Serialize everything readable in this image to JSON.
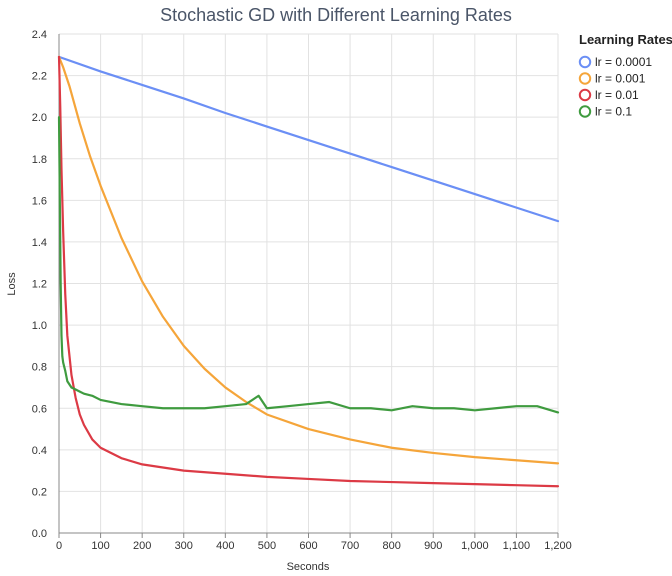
{
  "chart_data": {
    "type": "line",
    "title": "Stochastic GD with Different Learning Rates",
    "xlabel": "Seconds",
    "ylabel": "Loss",
    "xlim": [
      0,
      1200
    ],
    "ylim": [
      0,
      2.4
    ],
    "x_ticks": [
      0,
      100,
      200,
      300,
      400,
      500,
      600,
      700,
      800,
      900,
      1000,
      1100,
      1200
    ],
    "x_tick_labels": [
      "0",
      "100",
      "200",
      "300",
      "400",
      "500",
      "600",
      "700",
      "800",
      "900",
      "1,000",
      "1,100",
      "1,200"
    ],
    "y_ticks": [
      0,
      0.2,
      0.4,
      0.6,
      0.8,
      1.0,
      1.2,
      1.4,
      1.6,
      1.8,
      2.0,
      2.2,
      2.4
    ],
    "y_tick_labels": [
      "0.0",
      "0.2",
      "0.4",
      "0.6",
      "0.8",
      "1.0",
      "1.2",
      "1.4",
      "1.6",
      "1.8",
      "2.0",
      "2.2",
      "2.4"
    ],
    "grid": true,
    "legend_title": "Learning Rates",
    "legend_position": "top-right",
    "series": [
      {
        "name": "lr = 0.0001",
        "color": "#6b8ff5",
        "x": [
          0,
          100,
          200,
          300,
          400,
          500,
          600,
          700,
          800,
          900,
          1000,
          1100,
          1200
        ],
        "y": [
          2.29,
          2.22,
          2.155,
          2.09,
          2.02,
          1.955,
          1.89,
          1.825,
          1.76,
          1.695,
          1.63,
          1.565,
          1.5
        ]
      },
      {
        "name": "lr = 0.001",
        "color": "#f5a53a",
        "x": [
          0,
          10,
          25,
          50,
          75,
          100,
          150,
          200,
          250,
          300,
          350,
          400,
          450,
          500,
          600,
          700,
          800,
          900,
          1000,
          1100,
          1200
        ],
        "y": [
          2.29,
          2.24,
          2.15,
          1.97,
          1.81,
          1.67,
          1.42,
          1.21,
          1.04,
          0.9,
          0.79,
          0.7,
          0.63,
          0.57,
          0.5,
          0.45,
          0.41,
          0.385,
          0.365,
          0.35,
          0.335
        ]
      },
      {
        "name": "lr = 0.01",
        "color": "#dc3a45",
        "x": [
          0,
          3,
          6,
          10,
          15,
          20,
          30,
          40,
          50,
          60,
          80,
          100,
          150,
          200,
          300,
          400,
          500,
          600,
          700,
          800,
          900,
          1000,
          1100,
          1200
        ],
        "y": [
          2.29,
          2.05,
          1.75,
          1.45,
          1.15,
          0.95,
          0.76,
          0.65,
          0.57,
          0.52,
          0.45,
          0.41,
          0.36,
          0.33,
          0.3,
          0.285,
          0.27,
          0.26,
          0.25,
          0.245,
          0.24,
          0.235,
          0.23,
          0.225
        ]
      },
      {
        "name": "lr = 0.1",
        "color": "#3f9b3f",
        "x": [
          0,
          2,
          4,
          6,
          8,
          10,
          15,
          20,
          30,
          40,
          50,
          60,
          80,
          100,
          150,
          200,
          250,
          300,
          350,
          400,
          450,
          480,
          500,
          550,
          600,
          650,
          700,
          750,
          800,
          850,
          900,
          950,
          1000,
          1050,
          1100,
          1150,
          1200
        ],
        "y": [
          2.0,
          1.6,
          1.2,
          0.95,
          0.85,
          0.82,
          0.78,
          0.73,
          0.7,
          0.69,
          0.68,
          0.67,
          0.66,
          0.64,
          0.62,
          0.61,
          0.6,
          0.6,
          0.6,
          0.61,
          0.62,
          0.66,
          0.6,
          0.61,
          0.62,
          0.63,
          0.6,
          0.6,
          0.59,
          0.61,
          0.6,
          0.6,
          0.59,
          0.6,
          0.61,
          0.61,
          0.58
        ]
      }
    ]
  }
}
